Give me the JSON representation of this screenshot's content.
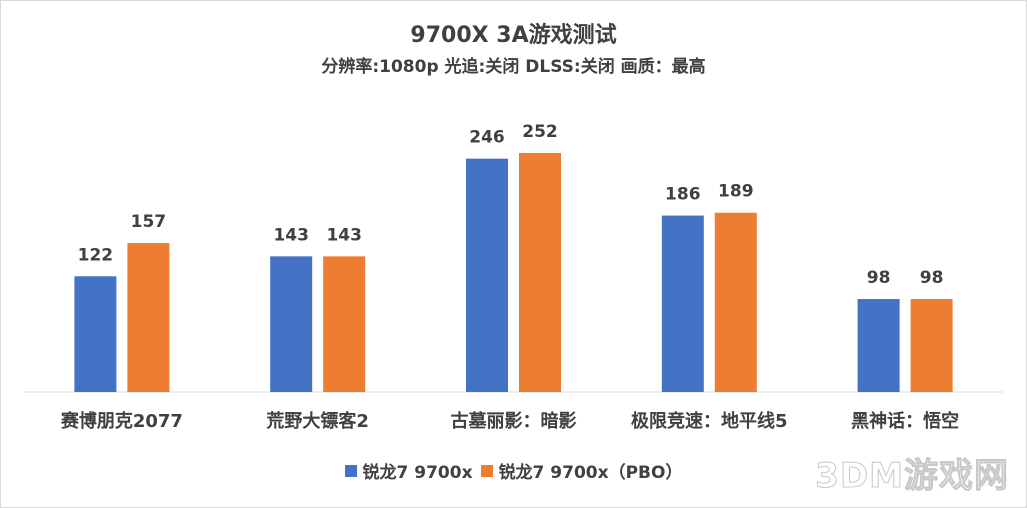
{
  "chart_data": {
    "type": "bar",
    "title": "9700X 3A游戏测试",
    "subtitle": "分辨率:1080p 光追:关闭 DLSS:关闭 画质：最高",
    "categories": [
      "赛博朋克2077",
      "荒野大镖客2",
      "古墓丽影：暗影",
      "极限竞速：地平线5",
      "黑神话：悟空"
    ],
    "series": [
      {
        "name": "锐龙7 9700x",
        "color": "#4472c4",
        "values": [
          122,
          143,
          246,
          186,
          98
        ]
      },
      {
        "name": "锐龙7 9700x（PBO）",
        "color": "#ed7d31",
        "values": [
          157,
          143,
          252,
          189,
          98
        ]
      }
    ],
    "ylim": [
      0,
      272
    ],
    "grid": false,
    "legend_position": "bottom",
    "data_labels": true
  },
  "watermark": "3DM游戏网"
}
